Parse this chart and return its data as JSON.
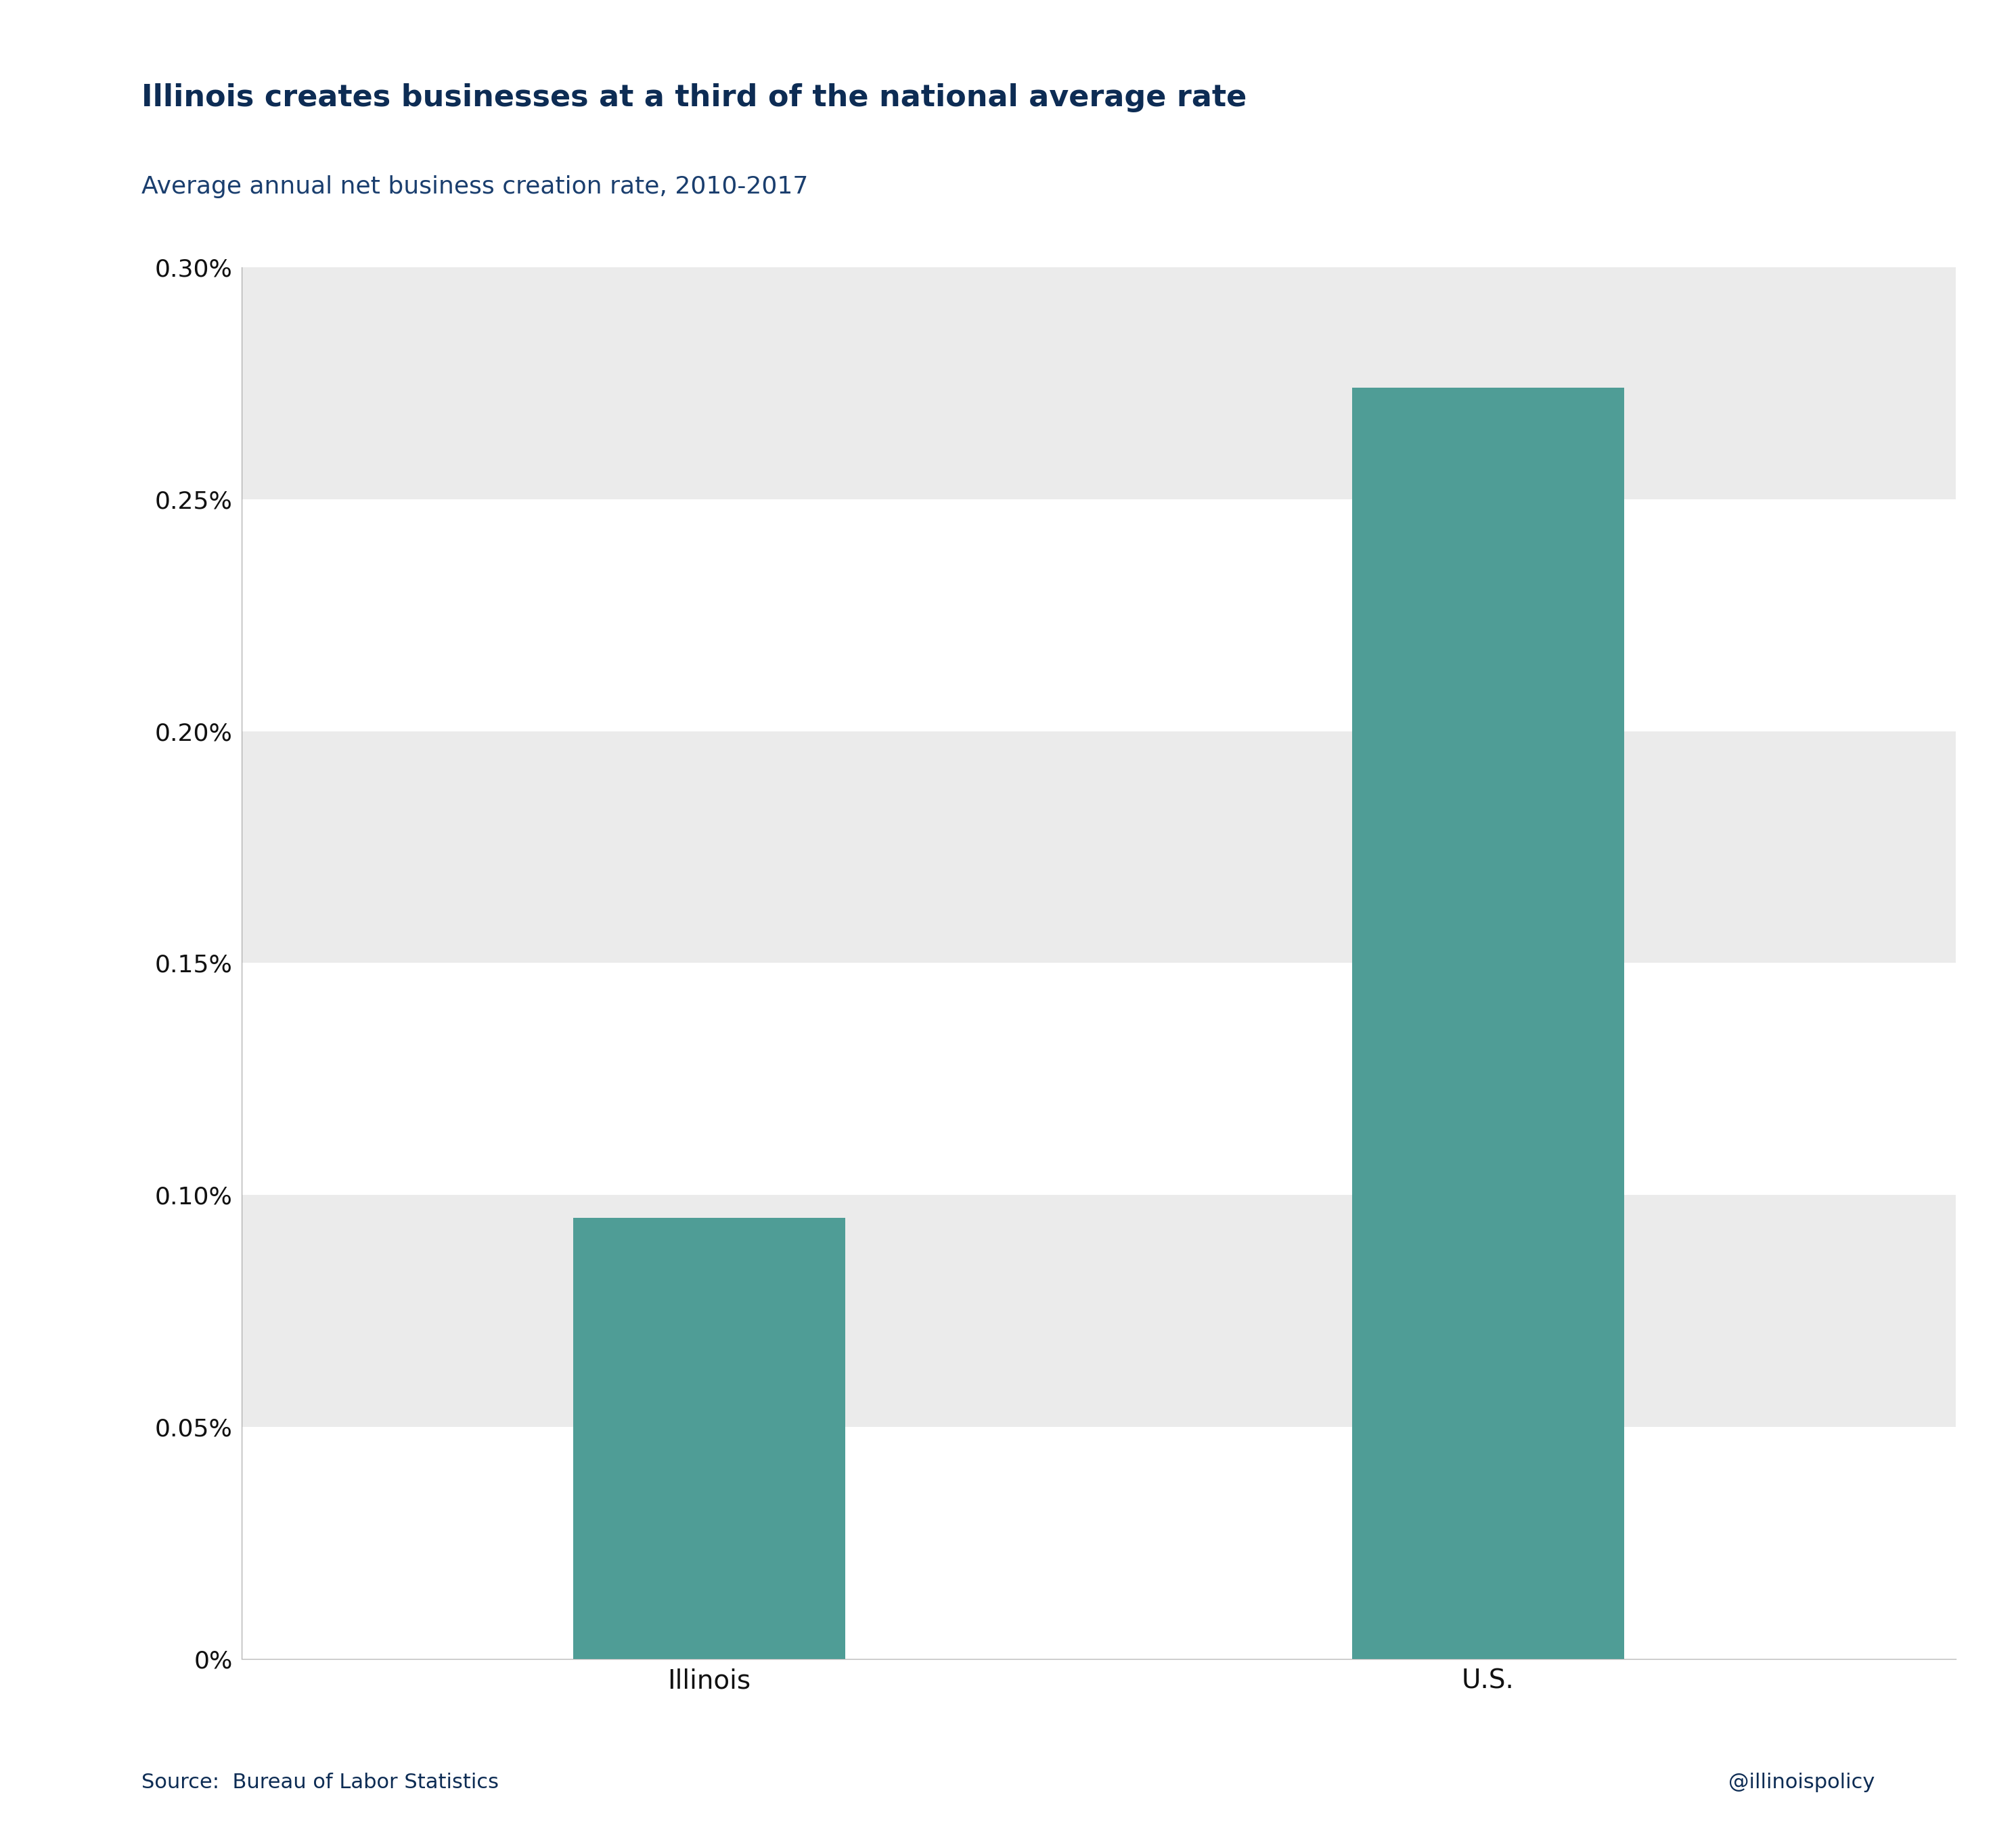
{
  "title": "Illinois creates businesses at a third of the national average rate",
  "subtitle": "Average annual net business creation rate, 2010-2017",
  "categories": [
    "Illinois",
    "U.S."
  ],
  "values": [
    0.00095,
    0.00274
  ],
  "bar_color": "#4f9d96",
  "title_color": "#0d2c54",
  "subtitle_color": "#1a3e6e",
  "tick_color": "#111111",
  "background_color": "#ffffff",
  "band_color_light": "#ebebeb",
  "band_color_white": "#ffffff",
  "source_text": "Source:  Bureau of Labor Statistics",
  "handle_text": "@illinoispolicy",
  "ylim": [
    0,
    0.003
  ],
  "ytick_values": [
    0,
    0.0005,
    0.001,
    0.0015,
    0.002,
    0.0025,
    0.003
  ],
  "ytick_labels": [
    "0%",
    "0.05%",
    "0.10%",
    "0.15%",
    "0.20%",
    "0.25%",
    "0.30%"
  ],
  "title_fontsize": 32,
  "subtitle_fontsize": 26,
  "tick_fontsize": 26,
  "xtick_fontsize": 28,
  "source_fontsize": 22,
  "bar_width": 0.35,
  "x_positions": [
    1,
    2
  ],
  "xlim": [
    0.4,
    2.6
  ]
}
